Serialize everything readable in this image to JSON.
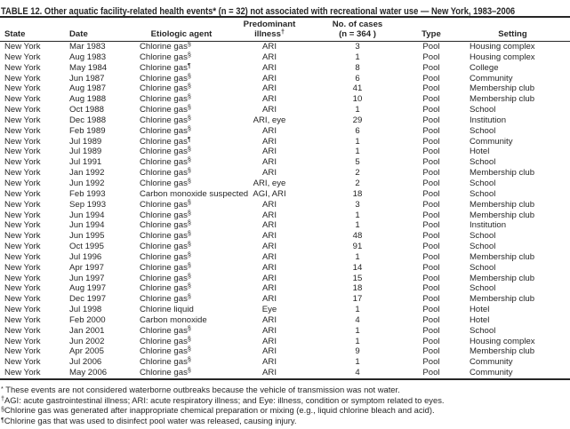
{
  "title": "TABLE 12. Other aquatic facility-related health events* (n = 32) not associated with recreational water use — New York, 1983–2006",
  "header": {
    "state": "State",
    "date": "Date",
    "agent": "Etiologic agent",
    "illness_line1": "Predominant",
    "illness_line2": "illness",
    "illness_sup": "†",
    "cases_line1": "No. of cases",
    "cases_line2": "(n = 364 )",
    "type": "Type",
    "setting": "Setting"
  },
  "rows": [
    {
      "state": "New York",
      "date": "Mar 1983",
      "agent": "Chlorine gas",
      "agent_sup": "§",
      "illness": "ARI",
      "cases": "3",
      "type": "Pool",
      "setting": "Housing complex"
    },
    {
      "state": "New York",
      "date": "Aug 1983",
      "agent": "Chlorine gas",
      "agent_sup": "§",
      "illness": "ARI",
      "cases": "1",
      "type": "Pool",
      "setting": "Housing complex"
    },
    {
      "state": "New York",
      "date": "May 1984",
      "agent": "Chlorine gas",
      "agent_sup": "¶",
      "illness": "ARI",
      "cases": "8",
      "type": "Pool",
      "setting": "College"
    },
    {
      "state": "New York",
      "date": "Jun 1987",
      "agent": "Chlorine gas",
      "agent_sup": "§",
      "illness": "ARI",
      "cases": "6",
      "type": "Pool",
      "setting": "Community"
    },
    {
      "state": "New York",
      "date": "Aug 1987",
      "agent": "Chlorine gas",
      "agent_sup": "§",
      "illness": "ARI",
      "cases": "41",
      "type": "Pool",
      "setting": "Membership club"
    },
    {
      "state": "New York",
      "date": "Aug 1988",
      "agent": "Chlorine gas",
      "agent_sup": "§",
      "illness": "ARI",
      "cases": "10",
      "type": "Pool",
      "setting": "Membership club"
    },
    {
      "state": "New York",
      "date": "Oct 1988",
      "agent": "Chlorine gas",
      "agent_sup": "§",
      "illness": "ARI",
      "cases": "1",
      "type": "Pool",
      "setting": "School"
    },
    {
      "state": "New York",
      "date": "Dec 1988",
      "agent": "Chlorine gas",
      "agent_sup": "§",
      "illness": "ARI, eye",
      "cases": "29",
      "type": "Pool",
      "setting": "Institution"
    },
    {
      "state": "New York",
      "date": "Feb 1989",
      "agent": "Chlorine gas",
      "agent_sup": "§",
      "illness": "ARI",
      "cases": "6",
      "type": "Pool",
      "setting": "School"
    },
    {
      "state": "New York",
      "date": "Jul 1989",
      "agent": "Chlorine gas",
      "agent_sup": "¶",
      "illness": "ARI",
      "cases": "1",
      "type": "Pool",
      "setting": "Community"
    },
    {
      "state": "New York",
      "date": "Jul 1989",
      "agent": "Chlorine gas",
      "agent_sup": "§",
      "illness": "ARI",
      "cases": "1",
      "type": "Pool",
      "setting": "Hotel"
    },
    {
      "state": "New York",
      "date": "Jul 1991",
      "agent": "Chlorine gas",
      "agent_sup": "§",
      "illness": "ARI",
      "cases": "5",
      "type": "Pool",
      "setting": "School"
    },
    {
      "state": "New York",
      "date": "Jan 1992",
      "agent": "Chlorine gas",
      "agent_sup": "§",
      "illness": "ARI",
      "cases": "2",
      "type": "Pool",
      "setting": "Membership club"
    },
    {
      "state": "New York",
      "date": "Jun 1992",
      "agent": "Chlorine gas",
      "agent_sup": "§",
      "illness": "ARI, eye",
      "cases": "2",
      "type": "Pool",
      "setting": "School"
    },
    {
      "state": "New York",
      "date": "Feb 1993",
      "agent": "Carbon monoxide suspected",
      "agent_sup": "",
      "illness": "AGI, ARI",
      "cases": "18",
      "type": "Pool",
      "setting": "School"
    },
    {
      "state": "New York",
      "date": "Sep 1993",
      "agent": "Chlorine gas",
      "agent_sup": "§",
      "illness": "ARI",
      "cases": "3",
      "type": "Pool",
      "setting": "Membership club"
    },
    {
      "state": "New York",
      "date": "Jun 1994",
      "agent": "Chlorine gas",
      "agent_sup": "§",
      "illness": "ARI",
      "cases": "1",
      "type": "Pool",
      "setting": "Membership club"
    },
    {
      "state": "New York",
      "date": "Jun 1994",
      "agent": "Chlorine gas",
      "agent_sup": "§",
      "illness": "ARI",
      "cases": "1",
      "type": "Pool",
      "setting": "Institution"
    },
    {
      "state": "New York",
      "date": "Jun 1995",
      "agent": "Chlorine gas",
      "agent_sup": "§",
      "illness": "ARI",
      "cases": "48",
      "type": "Pool",
      "setting": "School"
    },
    {
      "state": "New York",
      "date": "Oct 1995",
      "agent": "Chlorine gas",
      "agent_sup": "§",
      "illness": "ARI",
      "cases": "91",
      "type": "Pool",
      "setting": "School"
    },
    {
      "state": "New York",
      "date": "Jul 1996",
      "agent": "Chlorine gas",
      "agent_sup": "§",
      "illness": "ARI",
      "cases": "1",
      "type": "Pool",
      "setting": "Membership club"
    },
    {
      "state": "New York",
      "date": "Apr 1997",
      "agent": "Chlorine gas",
      "agent_sup": "§",
      "illness": "ARI",
      "cases": "14",
      "type": "Pool",
      "setting": "School"
    },
    {
      "state": "New York",
      "date": "Jun 1997",
      "agent": "Chlorine gas",
      "agent_sup": "§",
      "illness": "ARI",
      "cases": "15",
      "type": "Pool",
      "setting": "Membership club"
    },
    {
      "state": "New York",
      "date": "Aug 1997",
      "agent": "Chlorine gas",
      "agent_sup": "§",
      "illness": "ARI",
      "cases": "18",
      "type": "Pool",
      "setting": "School"
    },
    {
      "state": "New York",
      "date": "Dec 1997",
      "agent": "Chlorine gas",
      "agent_sup": "§",
      "illness": "ARI",
      "cases": "17",
      "type": "Pool",
      "setting": "Membership club"
    },
    {
      "state": "New York",
      "date": "Jul 1998",
      "agent": "Chlorine liquid",
      "agent_sup": "",
      "illness": "Eye",
      "cases": "1",
      "type": "Pool",
      "setting": "Hotel"
    },
    {
      "state": "New York",
      "date": "Feb 2000",
      "agent": "Carbon monoxide",
      "agent_sup": "",
      "illness": "ARI",
      "cases": "4",
      "type": "Pool",
      "setting": "Hotel"
    },
    {
      "state": "New York",
      "date": "Jan 2001",
      "agent": "Chlorine gas",
      "agent_sup": "§",
      "illness": "ARI",
      "cases": "1",
      "type": "Pool",
      "setting": "School"
    },
    {
      "state": "New York",
      "date": "Jun 2002",
      "agent": "Chlorine gas",
      "agent_sup": "§",
      "illness": "ARI",
      "cases": "1",
      "type": "Pool",
      "setting": "Housing complex"
    },
    {
      "state": "New York",
      "date": "Apr 2005",
      "agent": "Chlorine gas",
      "agent_sup": "§",
      "illness": "ARI",
      "cases": "9",
      "type": "Pool",
      "setting": "Membership club"
    },
    {
      "state": "New York",
      "date": "Jul 2006",
      "agent": "Chlorine gas",
      "agent_sup": "§",
      "illness": "ARI",
      "cases": "1",
      "type": "Pool",
      "setting": "Community"
    },
    {
      "state": "New York",
      "date": "May 2006",
      "agent": "Chlorine gas",
      "agent_sup": "§",
      "illness": "ARI",
      "cases": "4",
      "type": "Pool",
      "setting": "Community"
    }
  ],
  "footnotes": [
    {
      "sup": "*",
      "text": " These events are not considered waterborne outbreaks because the vehicle of transmission was not water."
    },
    {
      "sup": "†",
      "text": "AGI: acute gastrointestinal illness; ARI: acute respiratory illness; and Eye: illness, condition or symptom related to eyes."
    },
    {
      "sup": "§",
      "text": "Chlorine gas was generated after inappropriate chemical preparation or mixing (e.g., liquid chlorine bleach and acid)."
    },
    {
      "sup": "¶",
      "text": "Chlorine gas that was used to disinfect pool water was released, causing injury."
    }
  ]
}
